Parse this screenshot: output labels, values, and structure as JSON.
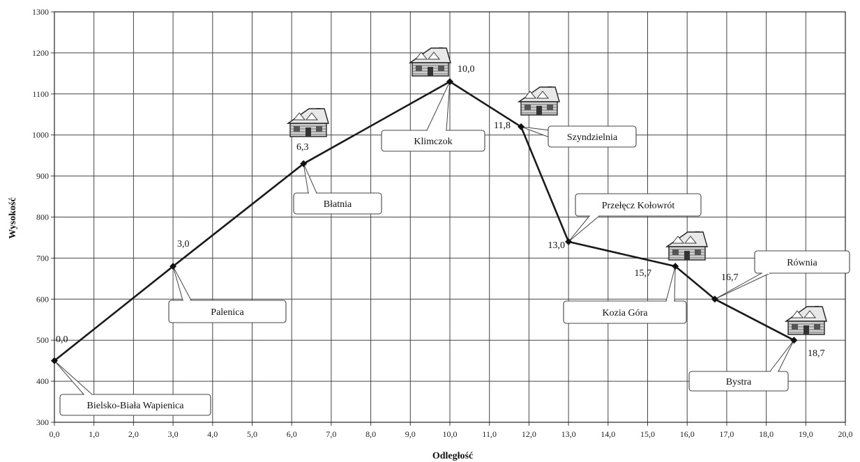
{
  "chart_data": {
    "type": "line",
    "xlabel": "Odległość",
    "ylabel": "Wysokość",
    "xlim": [
      0,
      20
    ],
    "ylim": [
      300,
      1300
    ],
    "x_step": 1,
    "y_step": 100,
    "x_tick_labels": [
      "0,0",
      "1,0",
      "2,0",
      "3,0",
      "4,0",
      "5,0",
      "6,0",
      "7,0",
      "8,0",
      "9,0",
      "10,0",
      "11,0",
      "12,0",
      "13,0",
      "14,0",
      "15,0",
      "16,0",
      "17,0",
      "18,0",
      "19,0",
      "20,0"
    ],
    "y_tick_labels": [
      "300",
      "400",
      "500",
      "600",
      "700",
      "800",
      "900",
      "1000",
      "1100",
      "1200",
      "1300"
    ],
    "grid": true,
    "line_color": "#1a1a1a",
    "points": [
      {
        "x": 0.0,
        "y": 450,
        "label": "0,0",
        "place": "Bielsko-Biała Wapienica",
        "hut": false
      },
      {
        "x": 3.0,
        "y": 680,
        "label": "3,0",
        "place": "Palenica",
        "hut": false
      },
      {
        "x": 6.3,
        "y": 930,
        "label": "6,3",
        "place": "Błatnia",
        "hut": true
      },
      {
        "x": 10.0,
        "y": 1130,
        "label": "10,0",
        "place": "Klimczok",
        "hut": true
      },
      {
        "x": 11.8,
        "y": 1020,
        "label": "11,8",
        "place": "Szyndzielnia",
        "hut": true
      },
      {
        "x": 13.0,
        "y": 740,
        "label": "13,0",
        "place": "Przełęcz Kołowrót",
        "hut": false
      },
      {
        "x": 15.7,
        "y": 680,
        "label": "15,7",
        "place": "Kozia Góra",
        "hut": true
      },
      {
        "x": 16.7,
        "y": 600,
        "label": "16,7",
        "place": "Równia",
        "hut": false
      },
      {
        "x": 18.7,
        "y": 500,
        "label": "18,7",
        "place": "Bystra",
        "hut": true
      }
    ]
  }
}
